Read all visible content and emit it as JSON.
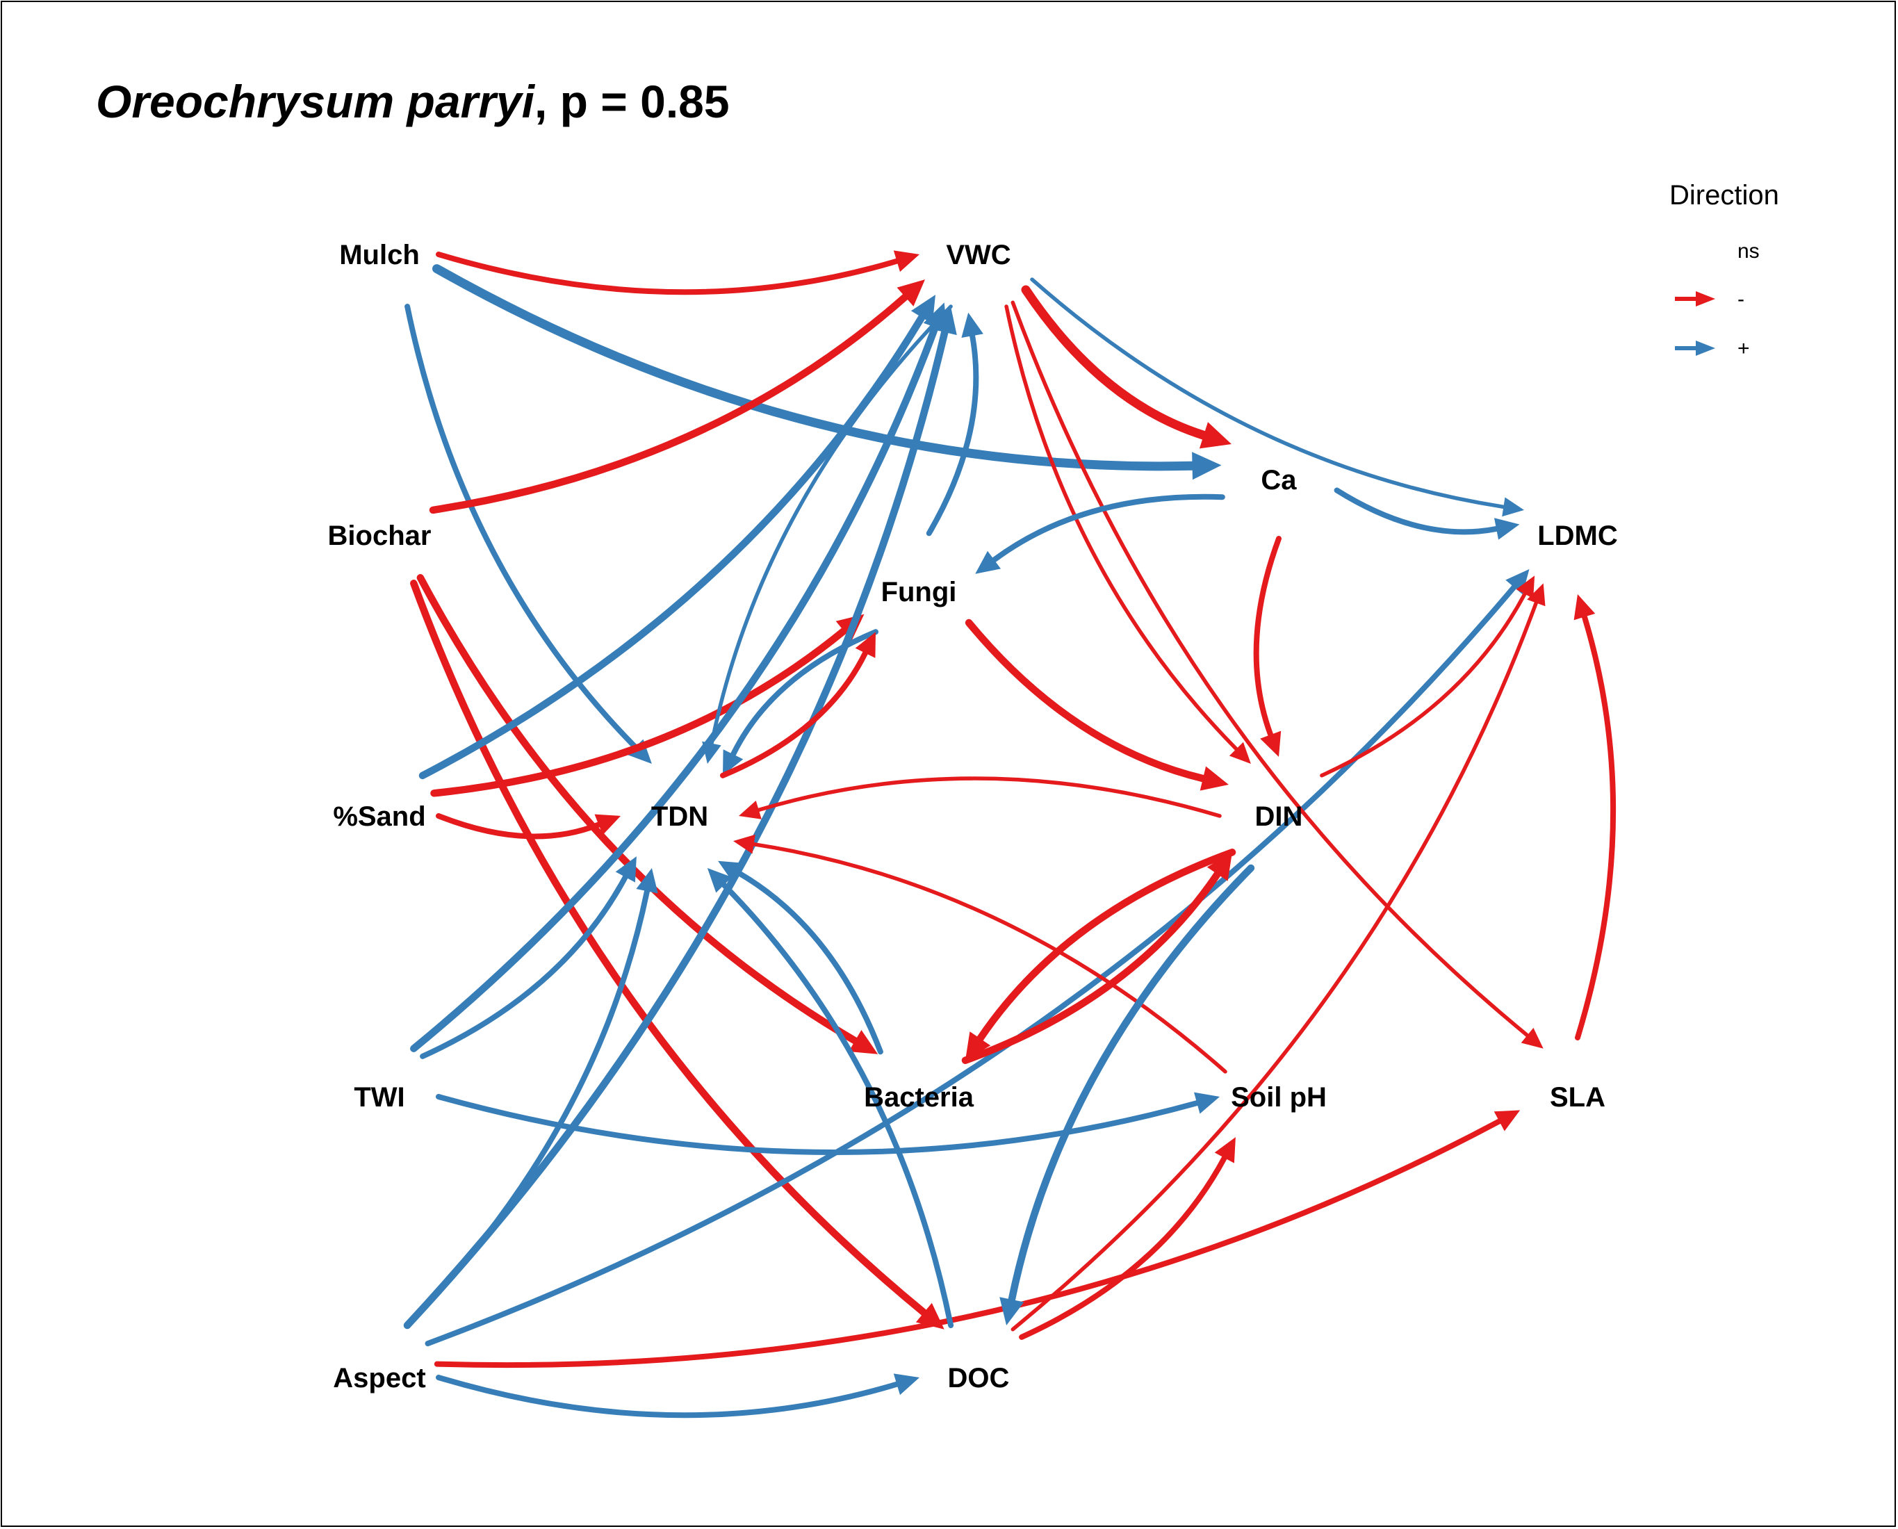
{
  "title": {
    "species": "Oreochrysum parryi",
    "rest": ", p = 0.85"
  },
  "legend": {
    "title": "Direction",
    "items": [
      {
        "label": "ns",
        "color": null
      },
      {
        "label": "-",
        "color": "#e41a1c"
      },
      {
        "label": "+",
        "color": "#377eb8"
      }
    ]
  },
  "colors": {
    "negative": "#e41a1c",
    "positive": "#377eb8"
  },
  "nodes": [
    {
      "id": "mulch",
      "label": "Mulch"
    },
    {
      "id": "vwc",
      "label": "VWC"
    },
    {
      "id": "biochar",
      "label": "Biochar"
    },
    {
      "id": "ca",
      "label": "Ca"
    },
    {
      "id": "ldmc",
      "label": "LDMC"
    },
    {
      "id": "fungi",
      "label": "Fungi"
    },
    {
      "id": "sand",
      "label": "%Sand"
    },
    {
      "id": "tdn",
      "label": "TDN"
    },
    {
      "id": "din",
      "label": "DIN"
    },
    {
      "id": "twi",
      "label": "TWI"
    },
    {
      "id": "bacteria",
      "label": "Bacteria"
    },
    {
      "id": "soilph",
      "label": "Soil pH"
    },
    {
      "id": "sla",
      "label": "SLA"
    },
    {
      "id": "aspect",
      "label": "Aspect"
    },
    {
      "id": "doc",
      "label": "DOC"
    }
  ],
  "edges": [
    {
      "from": "mulch",
      "to": "vwc",
      "sign": "-",
      "strength": 2
    },
    {
      "from": "mulch",
      "to": "ca",
      "sign": "+",
      "strength": 4
    },
    {
      "from": "mulch",
      "to": "tdn",
      "sign": "+",
      "strength": 2
    },
    {
      "from": "biochar",
      "to": "vwc",
      "sign": "-",
      "strength": 3
    },
    {
      "from": "biochar",
      "to": "bacteria",
      "sign": "-",
      "strength": 3
    },
    {
      "from": "biochar",
      "to": "doc",
      "sign": "-",
      "strength": 3
    },
    {
      "from": "sand",
      "to": "vwc",
      "sign": "+",
      "strength": 3
    },
    {
      "from": "sand",
      "to": "fungi",
      "sign": "-",
      "strength": 3
    },
    {
      "from": "sand",
      "to": "tdn",
      "sign": "-",
      "strength": 2
    },
    {
      "from": "twi",
      "to": "vwc",
      "sign": "+",
      "strength": 3
    },
    {
      "from": "twi",
      "to": "tdn",
      "sign": "+",
      "strength": 2
    },
    {
      "from": "twi",
      "to": "soilph",
      "sign": "+",
      "strength": 2
    },
    {
      "from": "aspect",
      "to": "vwc",
      "sign": "+",
      "strength": 3
    },
    {
      "from": "aspect",
      "to": "tdn",
      "sign": "+",
      "strength": 2
    },
    {
      "from": "aspect",
      "to": "ldmc",
      "sign": "+",
      "strength": 2
    },
    {
      "from": "aspect",
      "to": "sla",
      "sign": "-",
      "strength": 2
    },
    {
      "from": "aspect",
      "to": "doc",
      "sign": "+",
      "strength": 2
    },
    {
      "from": "vwc",
      "to": "ca",
      "sign": "-",
      "strength": 4
    },
    {
      "from": "vwc",
      "to": "ldmc",
      "sign": "+",
      "strength": 1
    },
    {
      "from": "vwc",
      "to": "din",
      "sign": "-",
      "strength": 1
    },
    {
      "from": "vwc",
      "to": "sla",
      "sign": "-",
      "strength": 1
    },
    {
      "from": "vwc",
      "to": "tdn",
      "sign": "+",
      "strength": 1
    },
    {
      "from": "fungi",
      "to": "vwc",
      "sign": "+",
      "strength": 2
    },
    {
      "from": "fungi",
      "to": "din",
      "sign": "-",
      "strength": 3
    },
    {
      "from": "fungi",
      "to": "tdn",
      "sign": "+",
      "strength": 2
    },
    {
      "from": "tdn",
      "to": "fungi",
      "sign": "-",
      "strength": 2
    },
    {
      "from": "ca",
      "to": "ldmc",
      "sign": "+",
      "strength": 2
    },
    {
      "from": "ca",
      "to": "fungi",
      "sign": "+",
      "strength": 2
    },
    {
      "from": "ca",
      "to": "din",
      "sign": "-",
      "strength": 2
    },
    {
      "from": "din",
      "to": "tdn",
      "sign": "-",
      "strength": 1
    },
    {
      "from": "din",
      "to": "bacteria",
      "sign": "-",
      "strength": 3
    },
    {
      "from": "din",
      "to": "ldmc",
      "sign": "-",
      "strength": 1
    },
    {
      "from": "bacteria",
      "to": "din",
      "sign": "-",
      "strength": 3
    },
    {
      "from": "bacteria",
      "to": "tdn",
      "sign": "+",
      "strength": 2
    },
    {
      "from": "soilph",
      "to": "tdn",
      "sign": "-",
      "strength": 1
    },
    {
      "from": "sla",
      "to": "ldmc",
      "sign": "-",
      "strength": 2
    },
    {
      "from": "doc",
      "to": "tdn",
      "sign": "+",
      "strength": 2
    },
    {
      "from": "doc",
      "to": "soilph",
      "sign": "-",
      "strength": 2
    },
    {
      "from": "doc",
      "to": "ldmc",
      "sign": "-",
      "strength": 1
    },
    {
      "from": "din",
      "to": "doc",
      "sign": "+",
      "strength": 3
    }
  ]
}
